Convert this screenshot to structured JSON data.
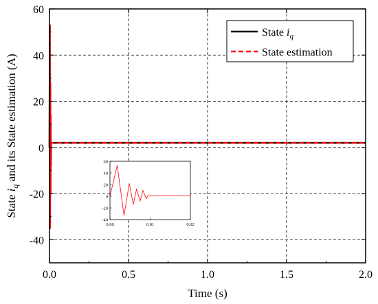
{
  "chart_data": {
    "type": "line",
    "xlabel": "Time (s)",
    "ylabel": {
      "pre": "State ",
      "var": "i",
      "sub": "q",
      "post": " and its State estimation (A)"
    },
    "xlim": [
      0,
      2.0
    ],
    "ylim": [
      -50,
      60
    ],
    "xticks": [
      0,
      0.5,
      1.0,
      1.5,
      2.0
    ],
    "xtick_labels": [
      "0.0",
      "0.5",
      "1.0",
      "1.5",
      "2.0"
    ],
    "yticks": [
      -40,
      -20,
      0,
      20,
      40,
      60
    ],
    "ytick_labels": [
      "-40",
      "-20",
      "0",
      "20",
      "40",
      "60"
    ],
    "grid": true,
    "legend_position": "top-right",
    "series": [
      {
        "name": "State i_q",
        "legend": {
          "pre": "State ",
          "var": "i",
          "sub": "q"
        },
        "color": "#000000",
        "style": "solid",
        "x": [
          0,
          0.002,
          0.0035,
          0.005,
          0.0065,
          0.0075,
          0.0085,
          0.01,
          2.0
        ],
        "y": [
          0,
          53,
          -35,
          28,
          -20,
          14,
          -8,
          2,
          2
        ]
      },
      {
        "name": "State estimation",
        "legend": {
          "pre": "State estimation",
          "var": "",
          "sub": ""
        },
        "color": "#ff0000",
        "style": "dashed",
        "x": [
          0,
          0.002,
          0.0035,
          0.005,
          0.0065,
          0.0075,
          0.0085,
          0.01,
          2.0
        ],
        "y": [
          0,
          53,
          -35,
          28,
          -20,
          14,
          -8,
          2,
          2
        ]
      }
    ],
    "inset": {
      "type": "line",
      "xlim": [
        0,
        0.02
      ],
      "ylim": [
        -40,
        60
      ],
      "xticks": [
        0,
        0.01,
        0.02
      ],
      "xtick_labels": [
        "0.00",
        "0.01",
        "0.02"
      ],
      "yticks": [
        -40,
        -20,
        0,
        20,
        40,
        60
      ],
      "ytick_labels": [
        "-40",
        "-20",
        "0",
        "20",
        "40",
        "60"
      ],
      "color": "#ff0000",
      "x": [
        0,
        0.0018,
        0.0035,
        0.0048,
        0.0058,
        0.0066,
        0.0075,
        0.0082,
        0.009,
        0.0095,
        0.012,
        0.02
      ],
      "y": [
        0,
        53,
        -33,
        22,
        -14,
        12,
        -8,
        10,
        -4,
        1,
        1,
        1
      ]
    }
  }
}
